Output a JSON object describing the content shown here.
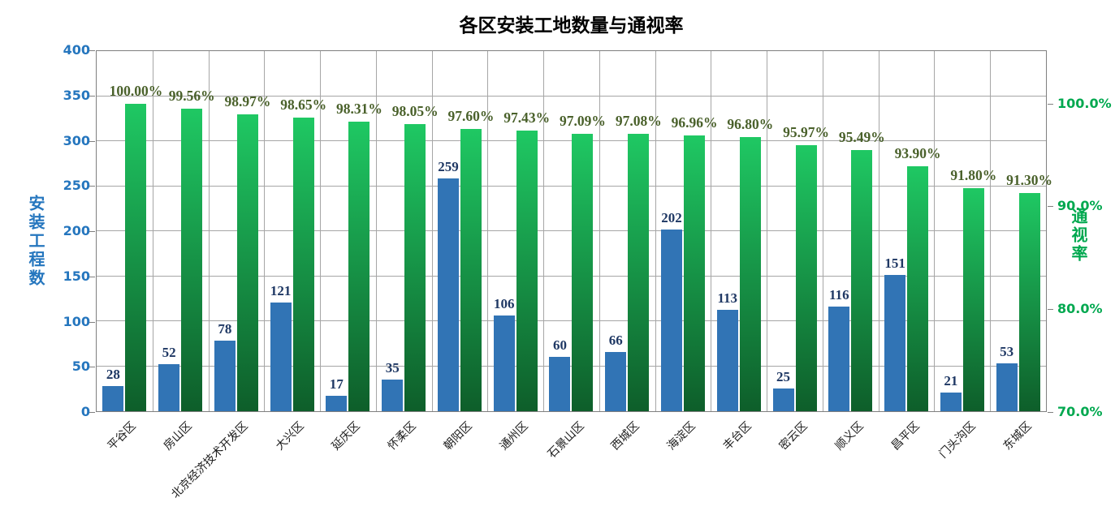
{
  "title": "各区安装工地数量与通视率",
  "colors": {
    "bar_blue": "#3174B5",
    "blue_value_label": "#1F3864",
    "left_axis_text": "#2576BE",
    "green_bar_top": "#1FC863",
    "green_bar_bottom": "#0E5E2A",
    "right_axis_text": "#00A84F",
    "pct_value_label": "#4A612B",
    "gridline": "#A6A6A6",
    "plot_border": "#7F7F7F"
  },
  "left_axis": {
    "title": "安装工程数",
    "tick_values": [
      0,
      50,
      100,
      150,
      200,
      250,
      300,
      350,
      400
    ],
    "max": 400
  },
  "right_axis": {
    "title": "通视率",
    "tick_values": [
      70,
      80,
      90,
      100
    ],
    "tick_labels": [
      "70.0%",
      "80.0%",
      "90.0%",
      "100.0%"
    ],
    "min": 70,
    "visible_max": 100,
    "fraction_of_plot_height_at_100pct": 0.853
  },
  "chart_data": {
    "type": "bar",
    "title": "各区安装工地数量与通视率",
    "xlabel": "",
    "ylabel_left": "安装工程数",
    "ylabel_right": "通视率",
    "left_ylim": [
      0,
      400
    ],
    "right_axis_visible_range_pct": [
      70,
      100
    ],
    "grid": true,
    "legend": "none",
    "categories": [
      "平谷区",
      "房山区",
      "北京经济技术开发区",
      "大兴区",
      "延庆区",
      "怀柔区",
      "朝阳区",
      "通州区",
      "石景山区",
      "西城区",
      "海淀区",
      "丰台区",
      "密云区",
      "顺义区",
      "昌平区",
      "门头沟区",
      "东城区"
    ],
    "series": [
      {
        "name": "安装工程数",
        "axis": "left",
        "values": [
          28,
          52,
          78,
          121,
          17,
          35,
          259,
          106,
          60,
          66,
          202,
          113,
          25,
          116,
          151,
          21,
          53
        ]
      },
      {
        "name": "通视率",
        "axis": "right",
        "values": [
          100.0,
          99.56,
          98.97,
          98.65,
          98.31,
          98.05,
          97.6,
          97.43,
          97.09,
          97.08,
          96.96,
          96.8,
          95.97,
          95.49,
          93.9,
          91.8,
          91.3
        ],
        "labels": [
          "100.00%",
          "99.56%",
          "98.97%",
          "98.65%",
          "98.31%",
          "98.05%",
          "97.60%",
          "97.43%",
          "97.09%",
          "97.08%",
          "96.96%",
          "96.80%",
          "95.97%",
          "95.49%",
          "93.90%",
          "91.80%",
          "91.30%"
        ]
      }
    ]
  }
}
